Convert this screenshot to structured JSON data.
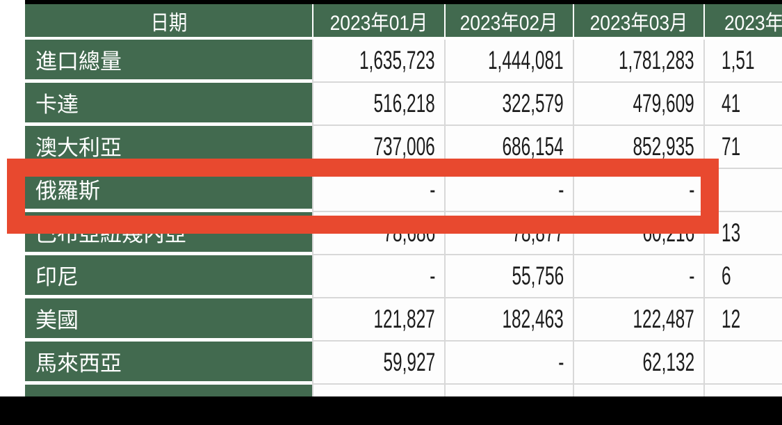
{
  "table": {
    "header": {
      "date_label": "日期",
      "months": [
        "2023年01月",
        "2023年02月",
        "2023年03月",
        "2023年0"
      ]
    },
    "rows": [
      {
        "label": "進口總量",
        "values": [
          "1,635,723",
          "1,444,081",
          "1,781,283",
          "1,51"
        ]
      },
      {
        "label": "卡達",
        "values": [
          "516,218",
          "322,579",
          "479,609",
          "41"
        ]
      },
      {
        "label": "澳大利亞",
        "values": [
          "737,006",
          "686,154",
          "852,935",
          "71"
        ]
      },
      {
        "label": "俄羅斯",
        "values": [
          "-",
          "-",
          "-",
          ""
        ]
      },
      {
        "label": "巴布亞紐幾內亞",
        "values": [
          "78,686",
          "78,877",
          "60,216",
          "13"
        ]
      },
      {
        "label": "印尼",
        "values": [
          "-",
          "55,756",
          "-",
          "6"
        ]
      },
      {
        "label": "美國",
        "values": [
          "121,827",
          "182,463",
          "122,487",
          "12"
        ]
      },
      {
        "label": "馬來西亞",
        "values": [
          "59,927",
          "-",
          "62,132",
          ""
        ]
      },
      {
        "label": "",
        "values": [
          "",
          "",
          "",
          ""
        ]
      }
    ],
    "highlight": {
      "target_row_label": "俄羅斯",
      "shape": "rectangle-outline",
      "color": "#e8492f"
    }
  },
  "colors": {
    "header_green": "#426a4f",
    "cell_white": "#fdfdfd",
    "grid_line_gray": "#d8d8d8",
    "highlight_red": "#e8492f",
    "letterbox_black": "#000000",
    "margin_white": "#ffffff"
  },
  "chart_data": {
    "type": "table",
    "title": "",
    "columns": [
      "日期",
      "2023年01月",
      "2023年02月",
      "2023年03月",
      "2023年0"
    ],
    "rows": [
      [
        "進口總量",
        "1,635,723",
        "1,444,081",
        "1,781,283",
        "1,51"
      ],
      [
        "卡達",
        "516,218",
        "322,579",
        "479,609",
        "41"
      ],
      [
        "澳大利亞",
        "737,006",
        "686,154",
        "852,935",
        "71"
      ],
      [
        "俄羅斯",
        "-",
        "-",
        "-",
        ""
      ],
      [
        "巴布亞紐幾內亞",
        "78,686",
        "78,877",
        "60,216",
        "13"
      ],
      [
        "印尼",
        "-",
        "55,756",
        "-",
        "6"
      ],
      [
        "美國",
        "121,827",
        "182,463",
        "122,487",
        "12"
      ],
      [
        "馬來西亞",
        "59,927",
        "-",
        "62,132",
        ""
      ]
    ]
  }
}
